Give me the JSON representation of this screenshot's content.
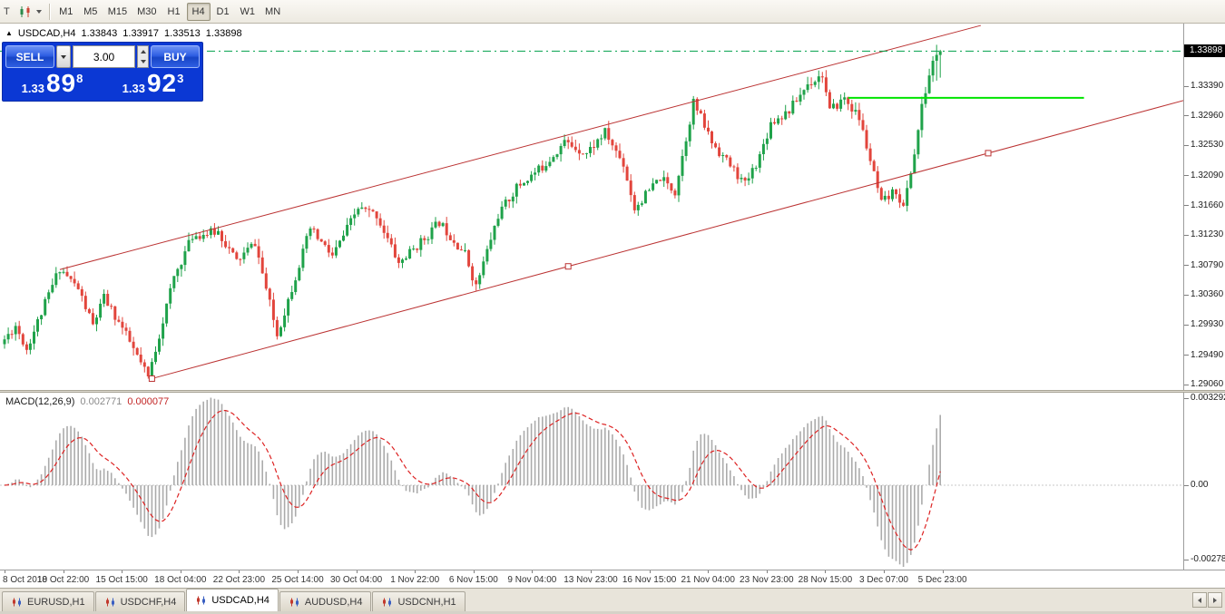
{
  "toolbar": {
    "left_text": "T",
    "timeframes": [
      {
        "label": "M1",
        "active": false
      },
      {
        "label": "M5",
        "active": false
      },
      {
        "label": "M15",
        "active": false
      },
      {
        "label": "M30",
        "active": false
      },
      {
        "label": "H1",
        "active": false
      },
      {
        "label": "H4",
        "active": true
      },
      {
        "label": "D1",
        "active": false
      },
      {
        "label": "W1",
        "active": false
      },
      {
        "label": "MN",
        "active": false
      }
    ]
  },
  "chart_header": {
    "collapse_arrow": "▲",
    "symbol_period": "USDCAD,H4",
    "open": "1.33843",
    "high": "1.33917",
    "low": "1.33513",
    "close": "1.33898"
  },
  "one_click": {
    "sell_label": "SELL",
    "buy_label": "BUY",
    "volume": "3.00",
    "bid": {
      "big": "1.33",
      "pips": "89",
      "point": "8"
    },
    "ask": {
      "big": "1.33",
      "pips": "92",
      "point": "3"
    }
  },
  "price_axis": {
    "current": "1.33898",
    "ticks": [
      "1.33390",
      "1.32960",
      "1.32530",
      "1.32090",
      "1.31660",
      "1.31230",
      "1.30790",
      "1.30360",
      "1.29930",
      "1.29490",
      "1.29060"
    ]
  },
  "time_axis": {
    "labels": [
      "8 Oct 2018",
      "10 Oct 22:00",
      "15 Oct 15:00",
      "18 Oct 04:00",
      "22 Oct 23:00",
      "25 Oct 14:00",
      "30 Oct 04:00",
      "1 Nov 22:00",
      "6 Nov 15:00",
      "9 Nov 04:00",
      "13 Nov 23:00",
      "16 Nov 15:00",
      "21 Nov 04:00",
      "23 Nov 23:00",
      "28 Nov 15:00",
      "3 Dec 07:00",
      "5 Dec 23:00"
    ]
  },
  "macd": {
    "name": "MACD(12,26,9)",
    "value_main": "0.002771",
    "value_signal": "0.000077",
    "axis": [
      "0.003292",
      "0.00",
      "-0.002787"
    ]
  },
  "tab_bar": {
    "tabs": [
      {
        "label": "EURUSD,H1",
        "active": false
      },
      {
        "label": "USDCHF,H4",
        "active": false
      },
      {
        "label": "USDCAD,H4",
        "active": true
      },
      {
        "label": "AUDUSD,H4",
        "active": false
      },
      {
        "label": "USDCNH,H1",
        "active": false
      }
    ]
  },
  "chart_data": {
    "type": "candlestick",
    "symbol": "USDCAD",
    "timeframe": "H4",
    "bars": 255,
    "seed": 11,
    "current_bar": {
      "open": 1.33843,
      "high": 1.33917,
      "low": 1.33513,
      "close": 1.33898
    },
    "price_path": [
      [
        0,
        1.2965
      ],
      [
        4,
        1.2992
      ],
      [
        7,
        1.2958
      ],
      [
        16,
        1.3076
      ],
      [
        21,
        1.3045
      ],
      [
        25,
        1.2992
      ],
      [
        28,
        1.3032
      ],
      [
        33,
        1.2988
      ],
      [
        40,
        1.2916
      ],
      [
        47,
        1.3062
      ],
      [
        52,
        1.3122
      ],
      [
        59,
        1.3128
      ],
      [
        64,
        1.3085
      ],
      [
        69,
        1.3112
      ],
      [
        75,
        1.2978
      ],
      [
        84,
        1.3132
      ],
      [
        90,
        1.3092
      ],
      [
        97,
        1.3162
      ],
      [
        102,
        1.3152
      ],
      [
        108,
        1.3082
      ],
      [
        115,
        1.3118
      ],
      [
        119,
        1.3142
      ],
      [
        126,
        1.3096
      ],
      [
        129,
        1.3048
      ],
      [
        135,
        1.3152
      ],
      [
        140,
        1.3192
      ],
      [
        147,
        1.3222
      ],
      [
        153,
        1.3258
      ],
      [
        159,
        1.3242
      ],
      [
        164,
        1.3272
      ],
      [
        169,
        1.3226
      ],
      [
        172,
        1.3162
      ],
      [
        179,
        1.3206
      ],
      [
        183,
        1.3186
      ],
      [
        188,
        1.3316
      ],
      [
        193,
        1.3258
      ],
      [
        198,
        1.3224
      ],
      [
        202,
        1.3196
      ],
      [
        206,
        1.3238
      ],
      [
        209,
        1.3286
      ],
      [
        214,
        1.3304
      ],
      [
        219,
        1.3342
      ],
      [
        223,
        1.3356
      ],
      [
        225,
        1.3302
      ],
      [
        229,
        1.3322
      ],
      [
        233,
        1.3292
      ],
      [
        235,
        1.3252
      ],
      [
        239,
        1.3168
      ],
      [
        243,
        1.3188
      ],
      [
        245,
        1.3162
      ],
      [
        248,
        1.3242
      ],
      [
        250,
        1.3308
      ],
      [
        252,
        1.3355
      ],
      [
        254,
        1.33898
      ]
    ],
    "bar_overrides": [
      [
        253,
        null,
        1.3399,
        1.3347,
        1.33843
      ],
      [
        254,
        1.33843,
        1.33917,
        1.33513,
        1.33898
      ]
    ],
    "objects": {
      "channel_upper": {
        "bar1": 15,
        "price1": 1.3073,
        "bar2": 265,
        "price2": 1.3427
      },
      "channel_lower": {
        "bar1": 40,
        "price1": 1.2915,
        "bar2": 331,
        "price2": 1.3334,
        "handle_bars": [
          40,
          153,
          267
        ]
      },
      "horizontal_line": {
        "price": 1.3322,
        "bar_start": 229,
        "bar_end": 293
      },
      "bid_line": {
        "price": 1.33898
      }
    },
    "macd_params": {
      "fast": 12,
      "slow": 26,
      "signal": 9
    },
    "colors": {
      "up": "#1fa24a",
      "down": "#e2453c",
      "channel": "#bb3333",
      "hline": "#00e400",
      "bid_line": "#00a14b",
      "histogram": "#ababab",
      "signal_line": "#dd2222"
    }
  }
}
